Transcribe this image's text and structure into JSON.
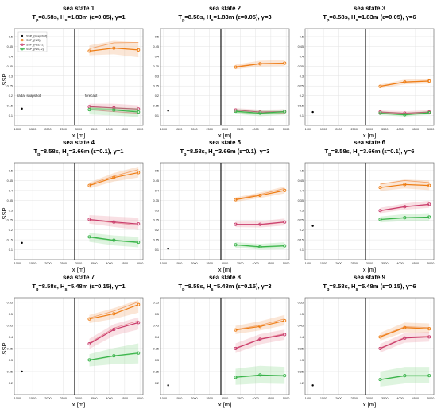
{
  "figure": {
    "y_label": "SSP",
    "x_label": "x [m]"
  },
  "colors": {
    "orange": "#ee7d14",
    "orange_light": "#f2a46a",
    "pink": "#c93c6c",
    "pink_light": "#e88f9d",
    "green": "#39b34a",
    "green_light": "#88d98c",
    "snapshot": "#000000",
    "divider": "#000000"
  },
  "chart_data": [
    {
      "type": "line",
      "panel": 1,
      "title": "sea state 1",
      "subtitle": "T_p=8.58s, H_s=1.83m (ε=0.05), γ=1",
      "xlabel": "x [m]",
      "ylabel": "SSP",
      "xlim": [
        900,
        5100
      ],
      "ylim": [
        0.05,
        0.54
      ],
      "xticks": [
        1000,
        1500,
        2000,
        2500,
        3000,
        3500,
        4000,
        4500,
        5000
      ],
      "yticks": [
        0.1,
        0.15,
        0.2,
        0.25,
        0.3,
        0.35,
        0.4,
        0.45,
        0.5
      ],
      "divider_x": 2870,
      "annotations": [
        {
          "text": "radar snapshot",
          "x": 1000,
          "y": 0.195
        },
        {
          "text": "forecast",
          "x": 3200,
          "y": 0.195
        }
      ],
      "legend": {
        "location": "top-left",
        "entries": [
          "SSP_{snapshot}",
          "SSP_{N,S}",
          "SSP_{N,S,+2}",
          "SSP_{N,S,-2}"
        ]
      },
      "snapshot": {
        "x": 1150,
        "y": 0.135
      },
      "x": [
        3350,
        4150,
        4950
      ],
      "series": [
        {
          "color": "orange",
          "values": [
            0.426,
            0.441,
            0.432
          ],
          "upper": [
            0.455,
            0.478,
            0.47
          ],
          "lower": [
            0.405,
            0.41,
            0.395
          ],
          "ghost": [
            0.438,
            0.468,
            0.47
          ]
        },
        {
          "color": "pink",
          "values": [
            0.145,
            0.139,
            0.133
          ],
          "upper": [
            0.16,
            0.16,
            0.152
          ],
          "lower": [
            0.126,
            0.118,
            0.105
          ],
          "ghost": [
            0.13,
            0.12,
            0.112
          ]
        },
        {
          "color": "green",
          "values": [
            0.13,
            0.128,
            0.118
          ],
          "upper": [
            0.145,
            0.142,
            0.138
          ],
          "lower": [
            0.105,
            0.1,
            0.092
          ],
          "ghost": [
            0.138,
            0.132,
            0.122
          ]
        }
      ]
    },
    {
      "type": "line",
      "panel": 2,
      "title": "sea state 2",
      "subtitle": "T_p=8.58s, H_s=1.83m (ε=0.05), γ=3",
      "xlabel": "x [m]",
      "ylabel": "",
      "xlim": [
        900,
        5100
      ],
      "ylim": [
        0.05,
        0.54
      ],
      "xticks": [
        1000,
        1500,
        2000,
        2500,
        3000,
        3500,
        4000,
        4500,
        5000
      ],
      "yticks": [
        0.1,
        0.15,
        0.2,
        0.25,
        0.3,
        0.35,
        0.4,
        0.45,
        0.5
      ],
      "divider_x": 2870,
      "snapshot": {
        "x": 1150,
        "y": 0.125
      },
      "x": [
        3350,
        4150,
        4950
      ],
      "series": [
        {
          "color": "orange",
          "values": [
            0.345,
            0.362,
            0.365
          ],
          "upper": [
            0.358,
            0.378,
            0.382
          ],
          "lower": [
            0.334,
            0.348,
            0.35
          ],
          "ghost": [
            0.348,
            0.364,
            0.366
          ]
        },
        {
          "color": "pink",
          "values": [
            0.128,
            0.118,
            0.12
          ],
          "upper": [
            0.138,
            0.13,
            0.132
          ],
          "lower": [
            0.115,
            0.105,
            0.108
          ],
          "ghost": [
            0.122,
            0.112,
            0.112
          ]
        },
        {
          "color": "green",
          "values": [
            0.122,
            0.112,
            0.12
          ],
          "upper": [
            0.134,
            0.126,
            0.132
          ],
          "lower": [
            0.108,
            0.096,
            0.104
          ],
          "ghost": [
            0.118,
            0.108,
            0.116
          ]
        }
      ]
    },
    {
      "type": "line",
      "panel": 3,
      "title": "sea state 3",
      "subtitle": "T_p=8.58s, H_s=1.83m (ε=0.05), γ=6",
      "xlabel": "x [m]",
      "ylabel": "",
      "xlim": [
        900,
        5100
      ],
      "ylim": [
        0.05,
        0.54
      ],
      "xticks": [
        1000,
        1500,
        2000,
        2500,
        3000,
        3500,
        4000,
        4500,
        5000
      ],
      "yticks": [
        0.1,
        0.15,
        0.2,
        0.25,
        0.3,
        0.35,
        0.4,
        0.45,
        0.5
      ],
      "divider_x": 2870,
      "snapshot": {
        "x": 1150,
        "y": 0.118
      },
      "x": [
        3350,
        4150,
        4950
      ],
      "series": [
        {
          "color": "orange",
          "values": [
            0.248,
            0.27,
            0.275
          ],
          "upper": [
            0.258,
            0.282,
            0.288
          ],
          "lower": [
            0.238,
            0.258,
            0.262
          ],
          "ghost": [
            0.25,
            0.271,
            0.276
          ]
        },
        {
          "color": "pink",
          "values": [
            0.118,
            0.112,
            0.118
          ],
          "upper": [
            0.126,
            0.122,
            0.128
          ],
          "lower": [
            0.108,
            0.102,
            0.108
          ],
          "ghost": [
            0.115,
            0.11,
            0.116
          ]
        },
        {
          "color": "green",
          "values": [
            0.112,
            0.104,
            0.114
          ],
          "upper": [
            0.122,
            0.114,
            0.124
          ],
          "lower": [
            0.102,
            0.094,
            0.104
          ],
          "ghost": [
            0.11,
            0.102,
            0.112
          ]
        }
      ]
    },
    {
      "type": "line",
      "panel": 4,
      "title": "sea state 4",
      "subtitle": "T_p=8.58s, H_s=3.66m (ε=0.1), γ=1",
      "xlabel": "x [m]",
      "ylabel": "SSP",
      "xlim": [
        900,
        5100
      ],
      "ylim": [
        0.05,
        0.54
      ],
      "xticks": [
        1000,
        1500,
        2000,
        2500,
        3000,
        3500,
        4000,
        4500,
        5000
      ],
      "yticks": [
        0.1,
        0.15,
        0.2,
        0.25,
        0.3,
        0.35,
        0.4,
        0.45,
        0.5
      ],
      "divider_x": 2870,
      "snapshot": {
        "x": 1150,
        "y": 0.135
      },
      "x": [
        3350,
        4150,
        4950
      ],
      "series": [
        {
          "color": "orange",
          "values": [
            0.425,
            0.465,
            0.49
          ],
          "upper": [
            0.44,
            0.488,
            0.52
          ],
          "lower": [
            0.41,
            0.445,
            0.465
          ],
          "ghost": [
            0.432,
            0.472,
            0.505
          ]
        },
        {
          "color": "pink",
          "values": [
            0.253,
            0.24,
            0.23
          ],
          "upper": [
            0.275,
            0.268,
            0.262
          ],
          "lower": [
            0.232,
            0.215,
            0.2
          ],
          "ghost": [
            0.25,
            0.236,
            0.224
          ]
        },
        {
          "color": "green",
          "values": [
            0.165,
            0.148,
            0.138
          ],
          "upper": [
            0.185,
            0.172,
            0.165
          ],
          "lower": [
            0.14,
            0.122,
            0.112
          ],
          "ghost": [
            0.162,
            0.145,
            0.135
          ]
        }
      ]
    },
    {
      "type": "line",
      "panel": 5,
      "title": "sea state 5",
      "subtitle": "T_p=8.58s, H_s=3.66m (ε=0.1), γ=3",
      "xlabel": "x [m]",
      "ylabel": "",
      "xlim": [
        900,
        5100
      ],
      "ylim": [
        0.05,
        0.54
      ],
      "xticks": [
        1000,
        1500,
        2000,
        2500,
        3000,
        3500,
        4000,
        4500,
        5000
      ],
      "yticks": [
        0.1,
        0.15,
        0.2,
        0.25,
        0.3,
        0.35,
        0.4,
        0.45,
        0.5
      ],
      "divider_x": 2870,
      "snapshot": {
        "x": 1150,
        "y": 0.105
      },
      "x": [
        3350,
        4150,
        4950
      ],
      "series": [
        {
          "color": "orange",
          "values": [
            0.353,
            0.375,
            0.4
          ],
          "upper": [
            0.365,
            0.39,
            0.42
          ],
          "lower": [
            0.342,
            0.362,
            0.385
          ],
          "ghost": [
            0.356,
            0.38,
            0.41
          ]
        },
        {
          "color": "pink",
          "values": [
            0.228,
            0.228,
            0.24
          ],
          "upper": [
            0.242,
            0.244,
            0.258
          ],
          "lower": [
            0.214,
            0.212,
            0.222
          ],
          "ghost": [
            0.226,
            0.225,
            0.238
          ]
        },
        {
          "color": "green",
          "values": [
            0.125,
            0.115,
            0.12
          ],
          "upper": [
            0.138,
            0.13,
            0.138
          ],
          "lower": [
            0.11,
            0.1,
            0.102
          ],
          "ghost": [
            0.123,
            0.112,
            0.118
          ]
        }
      ]
    },
    {
      "type": "line",
      "panel": 6,
      "title": "sea state 6",
      "subtitle": "T_p=8.58s, H_s=3.66m (ε=0.1), γ=6",
      "xlabel": "x [m]",
      "ylabel": "",
      "xlim": [
        900,
        5100
      ],
      "ylim": [
        0.05,
        0.54
      ],
      "xticks": [
        1000,
        1500,
        2000,
        2500,
        3000,
        3500,
        4000,
        4500,
        5000
      ],
      "yticks": [
        0.1,
        0.15,
        0.2,
        0.25,
        0.3,
        0.35,
        0.4,
        0.45,
        0.5
      ],
      "divider_x": 2870,
      "snapshot": {
        "x": 1150,
        "y": 0.22
      },
      "x": [
        3350,
        4150,
        4950
      ],
      "series": [
        {
          "color": "orange",
          "values": [
            0.415,
            0.43,
            0.425
          ],
          "upper": [
            0.435,
            0.455,
            0.45
          ],
          "lower": [
            0.398,
            0.41,
            0.402
          ],
          "ghost": [
            0.432,
            0.45,
            0.44
          ]
        },
        {
          "color": "pink",
          "values": [
            0.298,
            0.318,
            0.33
          ],
          "upper": [
            0.312,
            0.334,
            0.348
          ],
          "lower": [
            0.285,
            0.302,
            0.312
          ],
          "ghost": [
            0.296,
            0.316,
            0.328
          ]
        },
        {
          "color": "green",
          "values": [
            0.253,
            0.262,
            0.265
          ],
          "upper": [
            0.268,
            0.28,
            0.285
          ],
          "lower": [
            0.238,
            0.245,
            0.245
          ],
          "ghost": [
            0.251,
            0.26,
            0.262
          ]
        }
      ]
    },
    {
      "type": "line",
      "panel": 7,
      "title": "sea state 7",
      "subtitle": "T_p=8.58s, H_s=5.48m (ε=0.15), γ=1",
      "xlabel": "x [m]",
      "ylabel": "SSP",
      "xlim": [
        900,
        5100
      ],
      "ylim": [
        0.15,
        0.57
      ],
      "xticks": [
        1000,
        1500,
        2000,
        2500,
        3000,
        3500,
        4000,
        4500,
        5000
      ],
      "yticks": [
        0.2,
        0.25,
        0.3,
        0.35,
        0.4,
        0.45,
        0.5,
        0.55
      ],
      "divider_x": 2870,
      "snapshot": {
        "x": 1150,
        "y": 0.25
      },
      "x": [
        3350,
        4150,
        4950
      ],
      "series": [
        {
          "color": "orange",
          "values": [
            0.478,
            0.5,
            0.54
          ],
          "upper": [
            0.495,
            0.525,
            0.56
          ],
          "lower": [
            0.46,
            0.478,
            0.505
          ],
          "ghost": [
            0.482,
            0.512,
            0.552
          ]
        },
        {
          "color": "pink",
          "values": [
            0.37,
            0.432,
            0.462
          ],
          "upper": [
            0.392,
            0.455,
            0.485
          ],
          "lower": [
            0.348,
            0.405,
            0.432
          ],
          "ghost": [
            0.374,
            0.438,
            0.47
          ]
        },
        {
          "color": "green",
          "values": [
            0.3,
            0.318,
            0.33
          ],
          "upper": [
            0.325,
            0.352,
            0.372
          ],
          "lower": [
            0.272,
            0.282,
            0.285
          ],
          "ghost": [
            0.298,
            0.316,
            0.328
          ]
        }
      ]
    },
    {
      "type": "line",
      "panel": 8,
      "title": "sea state 8",
      "subtitle": "T_p=8.58s, H_s=5.48m (ε=0.15), γ=3",
      "xlabel": "x [m]",
      "ylabel": "",
      "xlim": [
        900,
        5100
      ],
      "ylim": [
        0.15,
        0.57
      ],
      "xticks": [
        1000,
        1500,
        2000,
        2500,
        3000,
        3500,
        4000,
        4500,
        5000
      ],
      "yticks": [
        0.2,
        0.25,
        0.3,
        0.35,
        0.4,
        0.45,
        0.5,
        0.55
      ],
      "divider_x": 2870,
      "snapshot": {
        "x": 1150,
        "y": 0.19
      },
      "x": [
        3350,
        4150,
        4950
      ],
      "series": [
        {
          "color": "orange",
          "values": [
            0.43,
            0.445,
            0.47
          ],
          "upper": [
            0.448,
            0.468,
            0.495
          ],
          "lower": [
            0.412,
            0.428,
            0.45
          ],
          "ghost": [
            0.432,
            0.45,
            0.478
          ]
        },
        {
          "color": "pink",
          "values": [
            0.35,
            0.39,
            0.41
          ],
          "upper": [
            0.372,
            0.412,
            0.432
          ],
          "lower": [
            0.33,
            0.368,
            0.388
          ],
          "ghost": [
            0.352,
            0.392,
            0.414
          ]
        },
        {
          "color": "green",
          "values": [
            0.225,
            0.235,
            0.232
          ],
          "upper": [
            0.262,
            0.275,
            0.27
          ],
          "lower": [
            0.192,
            0.198,
            0.196
          ],
          "ghost": [
            0.224,
            0.232,
            0.23
          ]
        }
      ]
    },
    {
      "type": "line",
      "panel": 9,
      "title": "sea state 9",
      "subtitle": "T_p=8.58s, H_s=5.48m (ε=0.15), γ=6",
      "xlabel": "x [m]",
      "ylabel": "",
      "xlim": [
        900,
        5100
      ],
      "ylim": [
        0.15,
        0.57
      ],
      "xticks": [
        1000,
        1500,
        2000,
        2500,
        3000,
        3500,
        4000,
        4500,
        5000
      ],
      "yticks": [
        0.2,
        0.25,
        0.3,
        0.35,
        0.4,
        0.45,
        0.5,
        0.55
      ],
      "divider_x": 2870,
      "snapshot": {
        "x": 1150,
        "y": 0.19
      },
      "x": [
        3350,
        4150,
        4950
      ],
      "series": [
        {
          "color": "orange",
          "values": [
            0.4,
            0.44,
            0.435
          ],
          "upper": [
            0.418,
            0.462,
            0.458
          ],
          "lower": [
            0.384,
            0.42,
            0.414
          ],
          "ghost": [
            0.403,
            0.444,
            0.44
          ]
        },
        {
          "color": "pink",
          "values": [
            0.35,
            0.395,
            0.4
          ],
          "upper": [
            0.37,
            0.416,
            0.422
          ],
          "lower": [
            0.332,
            0.375,
            0.38
          ],
          "ghost": [
            0.352,
            0.398,
            0.404
          ]
        },
        {
          "color": "green",
          "values": [
            0.215,
            0.232,
            0.232
          ],
          "upper": [
            0.25,
            0.27,
            0.27
          ],
          "lower": [
            0.185,
            0.198,
            0.198
          ],
          "ghost": [
            0.214,
            0.23,
            0.23
          ]
        }
      ]
    }
  ]
}
